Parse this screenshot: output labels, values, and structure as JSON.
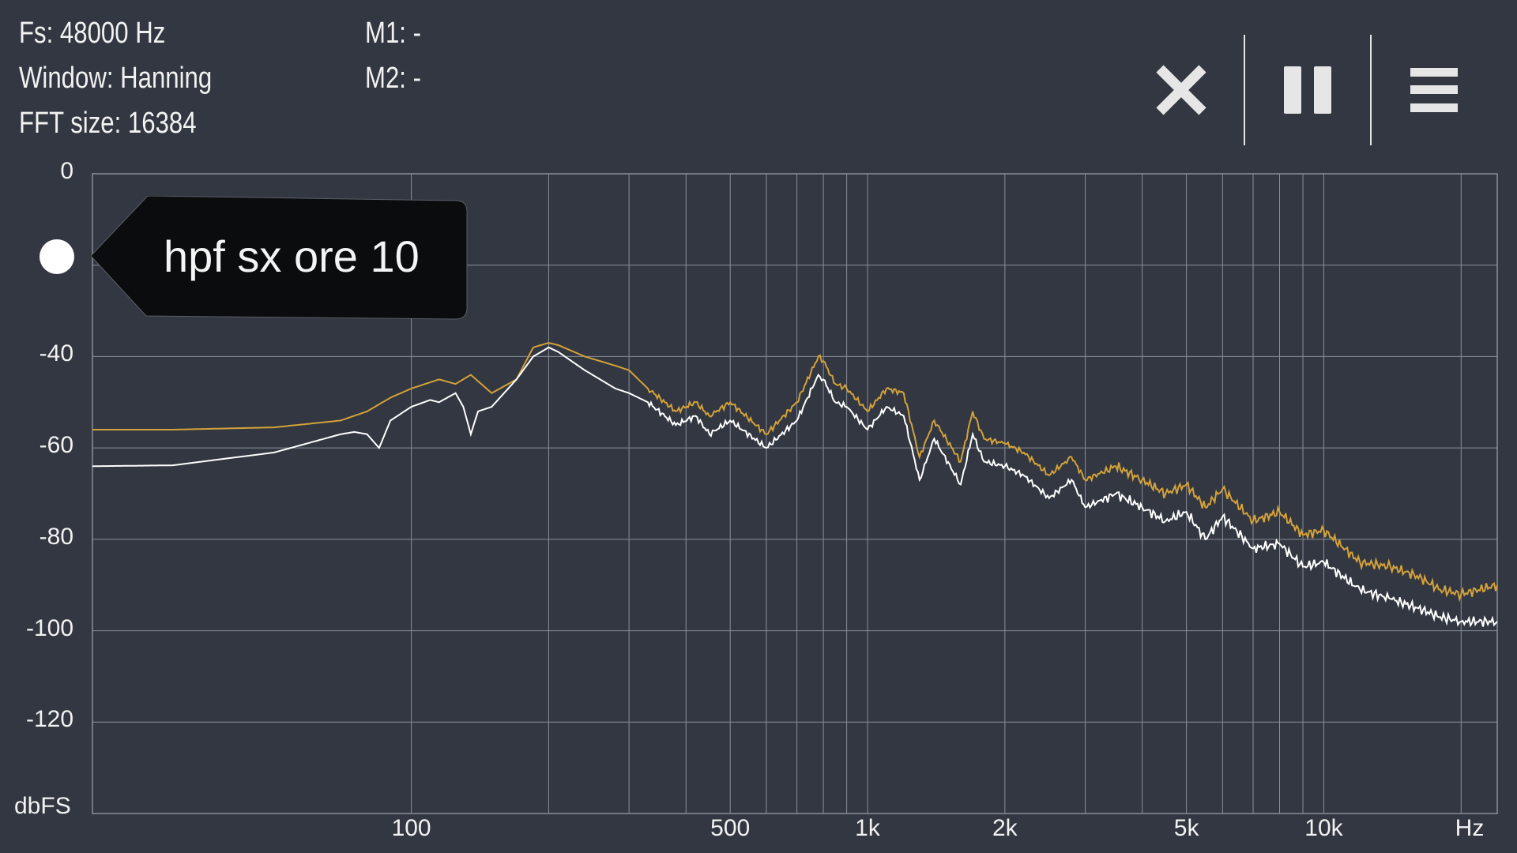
{
  "info": {
    "fs": "Fs: 48000 Hz",
    "window": "Window: Hanning",
    "fft_size": "FFT size: 16384",
    "m1": "M1: -",
    "m2": "M2: -"
  },
  "toolbar": {
    "close_icon": "close-icon",
    "pause_icon": "pause-icon",
    "menu_icon": "menu-icon"
  },
  "colors": {
    "background": "#323741",
    "grid": "#8a8f99",
    "trace_current": "#ffffff",
    "trace_peak": "#d4a23a",
    "tag_bg": "#0b0c0d"
  },
  "trace_label": "hpf sx ore 10",
  "chart_data": {
    "type": "line",
    "x_scale": "log",
    "xlim": [
      20,
      24000
    ],
    "ylim": [
      -140,
      0
    ],
    "ylabel": "dbFS",
    "xunit": "Hz",
    "y_ticks": [
      0,
      -20,
      -40,
      -60,
      -80,
      -100,
      -120,
      -140
    ],
    "y_tick_labels": [
      "0",
      "",
      "-40",
      "-60",
      "-80",
      "-100",
      "-120",
      ""
    ],
    "x_tick_labels": [
      {
        "value": 100,
        "label": "100"
      },
      {
        "value": 500,
        "label": "500"
      },
      {
        "value": 1000,
        "label": "1k"
      },
      {
        "value": 2000,
        "label": "2k"
      },
      {
        "value": 5000,
        "label": "5k"
      },
      {
        "value": 10000,
        "label": "10k"
      }
    ],
    "x_grid": [
      100,
      200,
      300,
      400,
      500,
      600,
      700,
      800,
      900,
      1000,
      2000,
      3000,
      4000,
      5000,
      6000,
      7000,
      8000,
      9000,
      10000,
      20000
    ],
    "series": [
      {
        "role": "peak",
        "x": [
          20,
          30,
          50,
          70,
          80,
          90,
          100,
          115,
          125,
          135,
          150,
          170,
          185,
          200,
          210,
          240,
          280,
          300,
          330,
          380,
          420,
          450,
          500,
          600,
          700,
          780,
          800,
          850,
          900,
          1000,
          1100,
          1200,
          1300,
          1400,
          1600,
          1700,
          1800,
          2000,
          2200,
          2500,
          2800,
          3000,
          3500,
          4000,
          4500,
          5000,
          5500,
          6000,
          7000,
          8000,
          9000,
          10000,
          12000,
          14000,
          16000,
          18000,
          20000,
          24000
        ],
        "y": [
          -56,
          -56,
          -55.5,
          -54,
          -52,
          -49,
          -47,
          -45,
          -46,
          -44,
          -48,
          -45,
          -38,
          -37,
          -37.5,
          -40,
          -42,
          -43,
          -47,
          -52,
          -50,
          -53,
          -50,
          -57,
          -50,
          -40,
          -41,
          -46,
          -47,
          -52,
          -47,
          -48,
          -62,
          -54,
          -63,
          -52,
          -58,
          -59,
          -61,
          -66,
          -62,
          -67,
          -64,
          -67,
          -70,
          -68,
          -73,
          -69,
          -76,
          -74,
          -79,
          -78,
          -85,
          -86,
          -88,
          -91,
          -92,
          -90
        ]
      },
      {
        "role": "current",
        "x": [
          20,
          30,
          50,
          70,
          75,
          80,
          85,
          90,
          100,
          110,
          115,
          125,
          130,
          135,
          140,
          150,
          170,
          185,
          200,
          210,
          240,
          280,
          300,
          330,
          380,
          420,
          450,
          500,
          600,
          700,
          780,
          800,
          850,
          900,
          1000,
          1100,
          1200,
          1300,
          1400,
          1600,
          1700,
          1800,
          2000,
          2200,
          2500,
          2800,
          3000,
          3500,
          4000,
          4500,
          5000,
          5500,
          6000,
          7000,
          8000,
          9000,
          10000,
          12000,
          14000,
          16000,
          18000,
          20000,
          24000
        ],
        "y": [
          -64,
          -63.8,
          -61,
          -57,
          -56.5,
          -57,
          -60,
          -54,
          -51,
          -49.5,
          -50,
          -48,
          -51,
          -57,
          -52,
          -51,
          -45,
          -40,
          -38,
          -39,
          -43,
          -47,
          -48,
          -50,
          -55,
          -53,
          -57,
          -54,
          -60,
          -54,
          -44,
          -45,
          -50,
          -51,
          -56,
          -51,
          -53,
          -67,
          -58,
          -68,
          -57,
          -63,
          -64,
          -66,
          -71,
          -67,
          -73,
          -70,
          -73,
          -76,
          -74,
          -80,
          -75,
          -82,
          -81,
          -86,
          -85,
          -91,
          -93,
          -95,
          -97,
          -98,
          -98
        ]
      }
    ]
  }
}
